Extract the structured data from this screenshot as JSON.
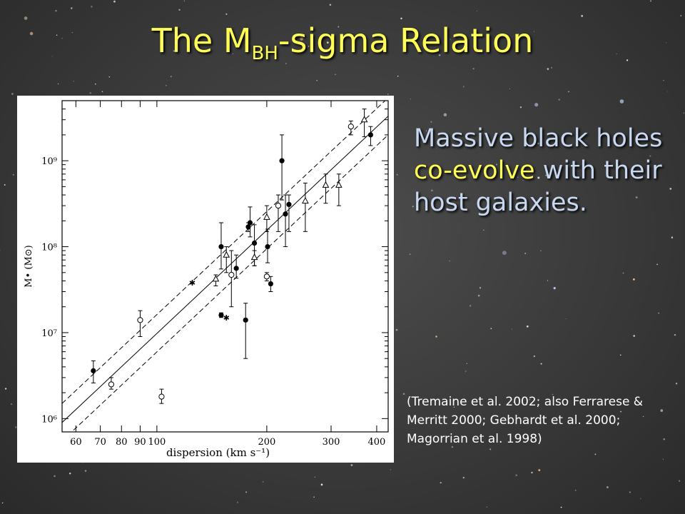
{
  "slide": {
    "title_main": "The M",
    "title_sub": "BH",
    "title_rest": "-sigma Relation",
    "bullet_prefix": "Massive black holes",
    "bullet_highlight": "co-evolve",
    "bullet_suffix": "with their host galaxies.",
    "citation": "(Tremaine et al. 2002; also Ferrarese & Merritt 2000; Gebhardt et al. 2000; Magorrian et al. 1998)"
  },
  "colors": {
    "title": "#ffff55",
    "bullet_text": "#c8d8f0",
    "highlight": "#ffff55",
    "citation": "#ffffff"
  },
  "chart_data": {
    "type": "scatter",
    "xlabel": "dispersion (km s⁻¹)",
    "ylabel": "M• (M⊙)",
    "xscale": "log",
    "yscale": "log",
    "xlim": [
      55,
      430
    ],
    "ylim": [
      700000,
      5000000000
    ],
    "x_ticks": [
      60,
      70,
      80,
      90,
      100,
      200,
      300,
      400
    ],
    "x_tick_labels": [
      "60",
      "70",
      "80",
      "90",
      "100",
      "200",
      "300",
      "400"
    ],
    "y_ticks": [
      1000000,
      10000000,
      100000000,
      1000000000
    ],
    "y_tick_labels": [
      "10⁶",
      "10⁷",
      "10⁸",
      "10⁹"
    ],
    "fit_line": {
      "x": [
        55,
        430
      ],
      "y": [
        900000,
        3300000000
      ]
    },
    "fit_upper": {
      "x": [
        55,
        430
      ],
      "y": [
        1500000,
        5400000000
      ]
    },
    "fit_lower": {
      "x": [
        55,
        430
      ],
      "y": [
        550000,
        2000000000
      ]
    },
    "series": [
      {
        "marker": "filled-circle",
        "points": [
          {
            "x": 67,
            "y": 3600000,
            "lo": 2600000,
            "hi": 4700000
          },
          {
            "x": 150,
            "y": 100000000,
            "lo": 55000000,
            "hi": 190000000
          },
          {
            "x": 150,
            "y": 16000000,
            "lo": 15000000,
            "hi": 17000000
          },
          {
            "x": 175,
            "y": 14000000,
            "lo": 5000000,
            "hi": 22000000
          },
          {
            "x": 178,
            "y": 170000000,
            "lo": 150000000,
            "hi": 190000000
          },
          {
            "x": 180,
            "y": 190000000,
            "lo": 130000000,
            "hi": 290000000
          },
          {
            "x": 185,
            "y": 110000000,
            "lo": 60000000,
            "hi": 180000000
          },
          {
            "x": 201,
            "y": 100000000,
            "lo": 65000000,
            "hi": 160000000
          },
          {
            "x": 205,
            "y": 37000000,
            "lo": 30000000,
            "hi": 45000000
          },
          {
            "x": 220,
            "y": 1000000000,
            "lo": 350000000,
            "hi": 2000000000
          },
          {
            "x": 225,
            "y": 240000000,
            "lo": 100000000,
            "hi": 400000000
          },
          {
            "x": 230,
            "y": 310000000,
            "lo": 150000000,
            "hi": 400000000
          },
          {
            "x": 165,
            "y": 56000000,
            "lo": 43000000,
            "hi": 80000000
          },
          {
            "x": 385,
            "y": 2000000000,
            "lo": 1500000000,
            "hi": 2500000000
          }
        ]
      },
      {
        "marker": "open-circle",
        "points": [
          {
            "x": 75,
            "y": 2500000,
            "lo": 2200000,
            "hi": 3000000
          },
          {
            "x": 90,
            "y": 14000000,
            "lo": 9000000,
            "hi": 18000000
          },
          {
            "x": 103,
            "y": 1800000,
            "lo": 1500000,
            "hi": 2200000
          },
          {
            "x": 160,
            "y": 47000000,
            "lo": 20000000,
            "hi": 90000000
          },
          {
            "x": 200,
            "y": 45000000,
            "lo": 40000000,
            "hi": 50000000
          },
          {
            "x": 215,
            "y": 300000000,
            "lo": 150000000,
            "hi": 400000000
          },
          {
            "x": 340,
            "y": 2500000000,
            "lo": 2000000000,
            "hi": 2900000000
          }
        ]
      },
      {
        "marker": "open-triangle",
        "points": [
          {
            "x": 145,
            "y": 42000000,
            "lo": 35000000,
            "hi": 47000000
          },
          {
            "x": 155,
            "y": 80000000,
            "lo": 50000000,
            "hi": 100000000
          },
          {
            "x": 185,
            "y": 75000000,
            "lo": 60000000,
            "hi": 90000000
          },
          {
            "x": 200,
            "y": 220000000,
            "lo": 150000000,
            "hi": 300000000
          },
          {
            "x": 255,
            "y": 340000000,
            "lo": 150000000,
            "hi": 550000000
          },
          {
            "x": 290,
            "y": 520000000,
            "lo": 320000000,
            "hi": 700000000
          },
          {
            "x": 315,
            "y": 520000000,
            "lo": 300000000,
            "hi": 700000000
          },
          {
            "x": 370,
            "y": 3000000000,
            "lo": 1900000000,
            "hi": 4000000000
          }
        ]
      },
      {
        "marker": "star",
        "points": [
          {
            "x": 125,
            "y": 38000000,
            "lo": 38000000,
            "hi": 38000000
          },
          {
            "x": 155,
            "y": 15000000,
            "lo": 15000000,
            "hi": 15000000
          }
        ]
      }
    ]
  }
}
